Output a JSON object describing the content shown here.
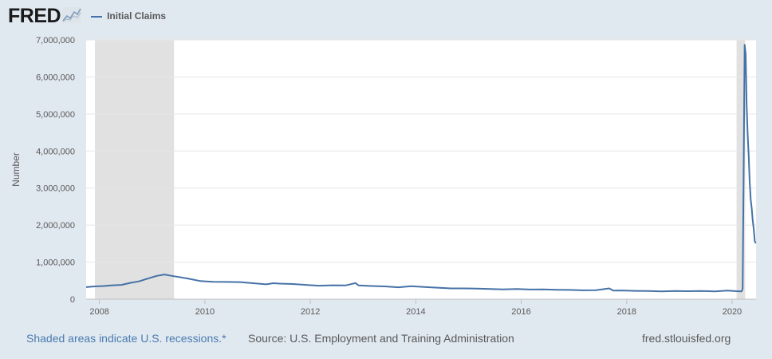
{
  "header": {
    "logo_text": "FRED",
    "logo_icon": "fred-chart-logo-icon"
  },
  "footer": {
    "recession_note": "Shaded areas indicate U.S. recessions.*",
    "source": "Source: U.S. Employment and Training Administration",
    "site": "fred.stlouisfed.org"
  },
  "colors": {
    "series": "#4572a7",
    "recession_shade": "#e1e1e1",
    "plot_bg": "#ffffff",
    "page_bg": "#e1e9f0"
  },
  "chart_data": {
    "type": "line",
    "ylabel": "Number",
    "ylim": [
      0,
      7000000
    ],
    "xlim": [
      "2007-10-01",
      "2020-06-15"
    ],
    "y_ticks": [
      0,
      1000000,
      2000000,
      3000000,
      4000000,
      5000000,
      6000000,
      7000000
    ],
    "y_tick_labels": [
      "0",
      "1,000,000",
      "2,000,000",
      "3,000,000",
      "4,000,000",
      "5,000,000",
      "6,000,000",
      "7,000,000"
    ],
    "x_ticks": [
      "2008-01-01",
      "2010-01-01",
      "2012-01-01",
      "2014-01-01",
      "2016-01-01",
      "2018-01-01",
      "2020-01-01"
    ],
    "x_tick_labels": [
      "2008",
      "2010",
      "2012",
      "2014",
      "2016",
      "2018",
      "2020"
    ],
    "grid": true,
    "legend_position": "top-left",
    "recessions": [
      {
        "start": "2007-12-01",
        "end": "2009-06-01"
      },
      {
        "start": "2020-02-01",
        "end": "2020-04-01"
      }
    ],
    "series": [
      {
        "name": "Initial Claims",
        "color": "#4572a7",
        "points": [
          [
            "2007-10-01",
            325000
          ],
          [
            "2007-12-01",
            345000
          ],
          [
            "2008-02-01",
            355000
          ],
          [
            "2008-04-01",
            375000
          ],
          [
            "2008-06-01",
            385000
          ],
          [
            "2008-08-01",
            440000
          ],
          [
            "2008-10-01",
            480000
          ],
          [
            "2008-12-01",
            555000
          ],
          [
            "2009-02-01",
            630000
          ],
          [
            "2009-03-27",
            665000
          ],
          [
            "2009-05-01",
            640000
          ],
          [
            "2009-06-15",
            610000
          ],
          [
            "2009-09-01",
            560000
          ],
          [
            "2009-12-01",
            490000
          ],
          [
            "2010-03-01",
            470000
          ],
          [
            "2010-06-01",
            465000
          ],
          [
            "2010-09-01",
            460000
          ],
          [
            "2010-12-01",
            430000
          ],
          [
            "2011-03-01",
            400000
          ],
          [
            "2011-04-20",
            430000
          ],
          [
            "2011-06-01",
            420000
          ],
          [
            "2011-09-01",
            410000
          ],
          [
            "2011-12-01",
            385000
          ],
          [
            "2012-03-01",
            365000
          ],
          [
            "2012-06-01",
            375000
          ],
          [
            "2012-09-01",
            370000
          ],
          [
            "2012-11-09",
            435000
          ],
          [
            "2012-12-01",
            370000
          ],
          [
            "2013-03-01",
            355000
          ],
          [
            "2013-06-01",
            345000
          ],
          [
            "2013-09-01",
            320000
          ],
          [
            "2013-12-01",
            350000
          ],
          [
            "2014-03-01",
            330000
          ],
          [
            "2014-06-01",
            310000
          ],
          [
            "2014-09-01",
            290000
          ],
          [
            "2014-12-01",
            290000
          ],
          [
            "2015-03-01",
            285000
          ],
          [
            "2015-06-01",
            275000
          ],
          [
            "2015-09-01",
            265000
          ],
          [
            "2015-12-01",
            275000
          ],
          [
            "2016-03-01",
            260000
          ],
          [
            "2016-06-01",
            265000
          ],
          [
            "2016-09-01",
            255000
          ],
          [
            "2016-12-01",
            250000
          ],
          [
            "2017-03-01",
            240000
          ],
          [
            "2017-06-01",
            242000
          ],
          [
            "2017-09-01",
            290000
          ],
          [
            "2017-10-01",
            230000
          ],
          [
            "2017-12-01",
            235000
          ],
          [
            "2018-03-01",
            225000
          ],
          [
            "2018-06-01",
            220000
          ],
          [
            "2018-09-01",
            210000
          ],
          [
            "2018-12-01",
            220000
          ],
          [
            "2019-03-01",
            215000
          ],
          [
            "2019-06-01",
            220000
          ],
          [
            "2019-09-01",
            212000
          ],
          [
            "2019-12-01",
            230000
          ],
          [
            "2020-02-01",
            215000
          ],
          [
            "2020-03-07",
            211000
          ],
          [
            "2020-03-14",
            282000
          ],
          [
            "2020-03-21",
            3307000
          ],
          [
            "2020-03-28",
            6867000
          ],
          [
            "2020-04-04",
            6615000
          ],
          [
            "2020-04-11",
            5237000
          ],
          [
            "2020-04-18",
            4442000
          ],
          [
            "2020-04-25",
            3867000
          ],
          [
            "2020-05-02",
            3176000
          ],
          [
            "2020-05-09",
            2687000
          ],
          [
            "2020-05-16",
            2446000
          ],
          [
            "2020-05-23",
            2126000
          ],
          [
            "2020-05-30",
            1897000
          ],
          [
            "2020-06-06",
            1566000
          ],
          [
            "2020-06-13",
            1508000
          ]
        ]
      }
    ]
  }
}
